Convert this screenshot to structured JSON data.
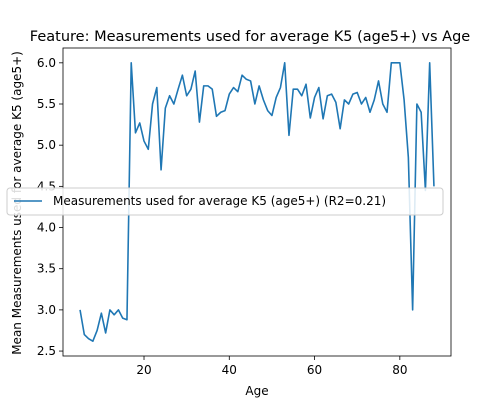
{
  "chart_data": {
    "type": "line",
    "title": "Feature: Measurements used for average K5 (age5+) vs Age",
    "xlabel": "Age",
    "ylabel": "Mean Measurements used for average K5 (age5+)",
    "xlim": [
      1,
      92
    ],
    "ylim": [
      2.44,
      6.18
    ],
    "xticks": [
      20,
      40,
      60,
      80
    ],
    "yticks": [
      2.5,
      3.0,
      3.5,
      4.0,
      4.5,
      5.0,
      5.5,
      6.0
    ],
    "xtick_labels": [
      "20",
      "40",
      "60",
      "80"
    ],
    "ytick_labels": [
      "2.5",
      "3.0",
      "3.5",
      "4.0",
      "4.5",
      "5.0",
      "5.5",
      "6.0"
    ],
    "grid": false,
    "legend_position": "center-left",
    "series": [
      {
        "name": "Measurements used for average K5 (age5+) (R2=0.21)",
        "color": "#1f77b4",
        "x": [
          5,
          6,
          7,
          8,
          9,
          10,
          11,
          12,
          13,
          14,
          15,
          16,
          17,
          18,
          19,
          20,
          21,
          22,
          23,
          24,
          25,
          26,
          27,
          28,
          29,
          30,
          31,
          32,
          33,
          34,
          35,
          36,
          37,
          38,
          39,
          40,
          41,
          42,
          43,
          44,
          45,
          46,
          47,
          48,
          49,
          50,
          51,
          52,
          53,
          54,
          55,
          56,
          57,
          58,
          59,
          60,
          61,
          62,
          63,
          64,
          65,
          66,
          67,
          68,
          69,
          70,
          71,
          72,
          73,
          74,
          75,
          76,
          77,
          78,
          79,
          80,
          81,
          82,
          83,
          84,
          85,
          86,
          87,
          88
        ],
        "y": [
          3.0,
          2.7,
          2.65,
          2.62,
          2.75,
          2.96,
          2.72,
          3.0,
          2.94,
          3.0,
          2.9,
          2.88,
          6.0,
          5.15,
          5.27,
          5.05,
          4.95,
          5.5,
          5.7,
          4.7,
          5.45,
          5.6,
          5.5,
          5.68,
          5.85,
          5.6,
          5.68,
          5.9,
          5.28,
          5.72,
          5.72,
          5.68,
          5.35,
          5.4,
          5.42,
          5.62,
          5.7,
          5.65,
          5.85,
          5.8,
          5.78,
          5.5,
          5.72,
          5.55,
          5.42,
          5.36,
          5.58,
          5.7,
          6.0,
          5.12,
          5.68,
          5.68,
          5.6,
          5.74,
          5.33,
          5.58,
          5.7,
          5.32,
          5.6,
          5.62,
          5.52,
          5.2,
          5.55,
          5.5,
          5.62,
          5.64,
          5.5,
          5.58,
          5.4,
          5.55,
          5.78,
          5.5,
          5.4,
          6.0,
          6.0,
          6.0,
          5.55,
          4.85,
          3.0,
          5.5,
          5.4,
          4.45,
          6.0,
          4.5
        ]
      }
    ]
  }
}
